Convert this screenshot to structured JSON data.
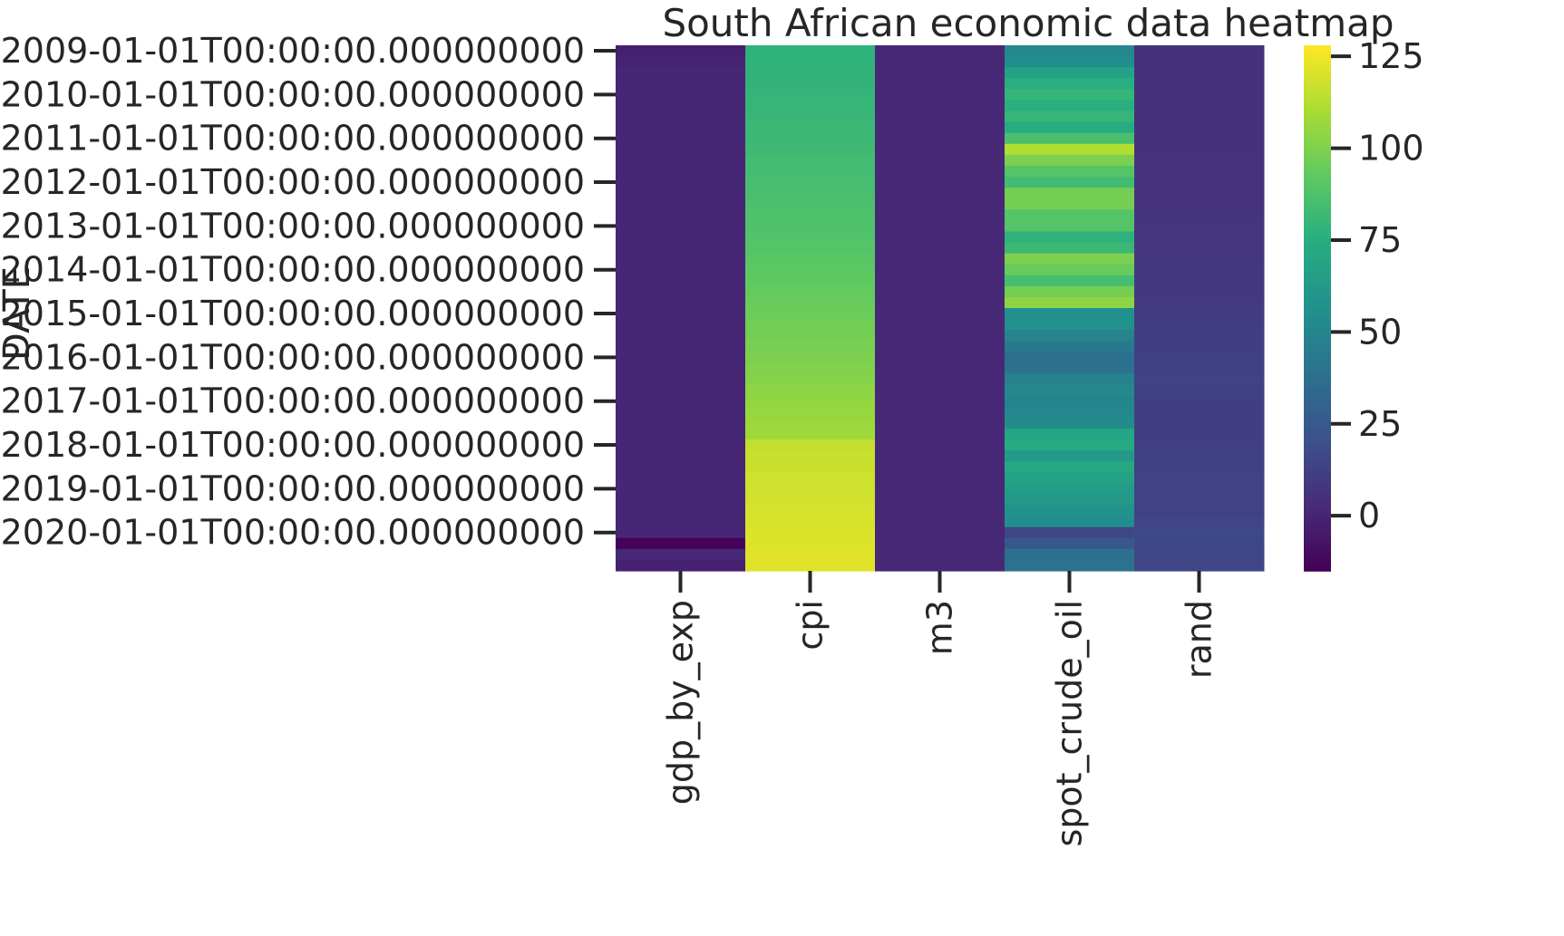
{
  "chart_data": {
    "type": "heatmap",
    "title": "South African economic data heatmap",
    "ylabel": "DATE",
    "xlabel": "",
    "colormap": "viridis",
    "columns": [
      "gdp_by_exp",
      "cpi",
      "m3",
      "spot_crude_oil",
      "rand"
    ],
    "y_tick_labels": [
      "2009-01-01T00:00:00.000000000",
      "2010-01-01T00:00:00.000000000",
      "2011-01-01T00:00:00.000000000",
      "2012-01-01T00:00:00.000000000",
      "2013-01-01T00:00:00.000000000",
      "2014-01-01T00:00:00.000000000",
      "2015-01-01T00:00:00.000000000",
      "2016-01-01T00:00:00.000000000",
      "2017-01-01T00:00:00.000000000",
      "2018-01-01T00:00:00.000000000",
      "2019-01-01T00:00:00.000000000",
      "2020-01-01T00:00:00.000000000"
    ],
    "row_step": "quarterly",
    "rows": 48,
    "series": [
      {
        "name": "gdp_by_exp",
        "values": [
          -2,
          0,
          1,
          1,
          1,
          1,
          1,
          1,
          1,
          1,
          1,
          1,
          1,
          1,
          1,
          1,
          1,
          1,
          1,
          1,
          1,
          1,
          1,
          1,
          1,
          1,
          1,
          1,
          1,
          1,
          1,
          1,
          1,
          1,
          1,
          1,
          1,
          1,
          1,
          1,
          1,
          1,
          1,
          1,
          1,
          -14,
          2,
          -1
        ]
      },
      {
        "name": "cpi",
        "values": [
          78,
          78,
          79,
          79,
          80,
          80,
          81,
          82,
          82,
          83,
          84,
          84,
          85,
          86,
          87,
          88,
          88,
          89,
          90,
          91,
          92,
          93,
          94,
          95,
          96,
          97,
          98,
          99,
          100,
          101,
          102,
          104,
          105,
          106,
          107,
          108,
          116,
          117,
          117,
          118,
          118,
          119,
          120,
          120,
          121,
          121,
          122,
          122
        ]
      },
      {
        "name": "m3",
        "values": [
          2,
          2,
          2,
          2,
          2,
          2,
          2,
          2,
          2,
          2,
          2,
          2,
          2,
          2,
          2,
          2,
          2,
          2,
          2,
          2,
          2,
          2,
          2,
          2,
          2,
          2,
          2,
          2,
          2,
          2,
          2,
          2,
          2,
          2,
          2,
          2,
          2,
          2,
          2,
          2,
          2,
          2,
          2,
          2,
          2,
          2,
          2,
          2
        ]
      },
      {
        "name": "spot_crude_oil",
        "values": [
          52,
          55,
          68,
          76,
          80,
          76,
          80,
          74,
          86,
          112,
          100,
          90,
          84,
          98,
          98,
          90,
          90,
          78,
          82,
          100,
          95,
          85,
          98,
          104,
          56,
          58,
          50,
          44,
          38,
          40,
          48,
          52,
          50,
          52,
          54,
          70,
          74,
          62,
          72,
          68,
          64,
          62,
          58,
          56,
          16,
          25,
          38,
          40
        ]
      },
      {
        "name": "rand",
        "values": [
          6,
          6,
          6,
          6,
          6,
          6,
          6,
          6,
          6,
          6,
          7,
          7,
          7,
          7,
          7,
          7,
          8,
          8,
          8,
          8,
          9,
          9,
          9,
          10,
          10,
          11,
          12,
          12,
          13,
          13,
          14,
          13,
          12,
          12,
          12,
          12,
          13,
          13,
          13,
          14,
          14,
          14,
          14,
          15,
          17,
          16,
          15,
          15
        ]
      }
    ],
    "colorbar": {
      "min": -15,
      "max": 128,
      "ticks": [
        0,
        25,
        50,
        75,
        100,
        125
      ]
    },
    "legend": "colorbar right",
    "grid": false
  }
}
